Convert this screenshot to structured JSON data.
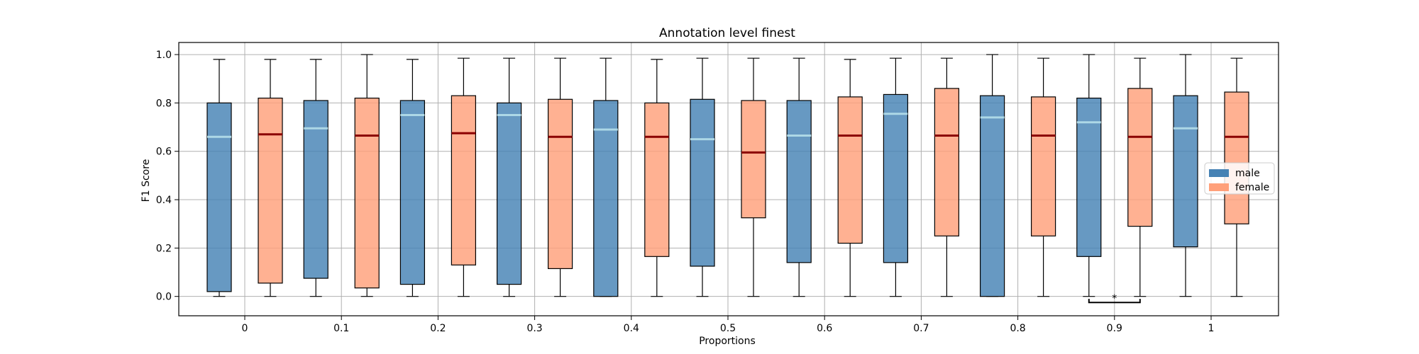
{
  "chart_data": {
    "type": "box",
    "title": "Annotation level finest",
    "xlabel": "Proportions",
    "ylabel": "F1 Score",
    "categories": [
      "0",
      "0.1",
      "0.2",
      "0.3",
      "0.4",
      "0.5",
      "0.6",
      "0.7",
      "0.8",
      "0.9",
      "1"
    ],
    "ylim": [
      -0.08,
      1.05
    ],
    "yticks": [
      "0.0",
      "0.2",
      "0.4",
      "0.6",
      "0.8",
      "1.0"
    ],
    "grid": true,
    "legend_position": "right",
    "series": [
      {
        "name": "male",
        "color": "#4682b4",
        "median_color": "#add8e6",
        "boxes": [
          {
            "whisker_low": 0.0,
            "q1": 0.02,
            "median": 0.66,
            "q3": 0.8,
            "whisker_high": 0.98
          },
          {
            "whisker_low": 0.0,
            "q1": 0.075,
            "median": 0.695,
            "q3": 0.81,
            "whisker_high": 0.98
          },
          {
            "whisker_low": 0.0,
            "q1": 0.05,
            "median": 0.75,
            "q3": 0.81,
            "whisker_high": 0.98
          },
          {
            "whisker_low": 0.0,
            "q1": 0.05,
            "median": 0.75,
            "q3": 0.8,
            "whisker_high": 0.985
          },
          {
            "whisker_low": 0.0,
            "q1": 0.0,
            "median": 0.69,
            "q3": 0.81,
            "whisker_high": 0.985
          },
          {
            "whisker_low": 0.0,
            "q1": 0.125,
            "median": 0.65,
            "q3": 0.815,
            "whisker_high": 0.985
          },
          {
            "whisker_low": 0.0,
            "q1": 0.14,
            "median": 0.665,
            "q3": 0.81,
            "whisker_high": 0.985
          },
          {
            "whisker_low": 0.0,
            "q1": 0.14,
            "median": 0.755,
            "q3": 0.835,
            "whisker_high": 0.985
          },
          {
            "whisker_low": 0.0,
            "q1": 0.0,
            "median": 0.74,
            "q3": 0.83,
            "whisker_high": 1.0
          },
          {
            "whisker_low": 0.0,
            "q1": 0.165,
            "median": 0.72,
            "q3": 0.82,
            "whisker_high": 1.0
          },
          {
            "whisker_low": 0.0,
            "q1": 0.205,
            "median": 0.695,
            "q3": 0.83,
            "whisker_high": 1.0
          }
        ]
      },
      {
        "name": "female",
        "color": "#ffa07a",
        "median_color": "#8b0000",
        "boxes": [
          {
            "whisker_low": 0.0,
            "q1": 0.055,
            "median": 0.67,
            "q3": 0.82,
            "whisker_high": 0.98
          },
          {
            "whisker_low": 0.0,
            "q1": 0.035,
            "median": 0.665,
            "q3": 0.82,
            "whisker_high": 1.0
          },
          {
            "whisker_low": 0.0,
            "q1": 0.13,
            "median": 0.675,
            "q3": 0.83,
            "whisker_high": 0.985
          },
          {
            "whisker_low": 0.0,
            "q1": 0.115,
            "median": 0.66,
            "q3": 0.815,
            "whisker_high": 0.985
          },
          {
            "whisker_low": 0.0,
            "q1": 0.165,
            "median": 0.66,
            "q3": 0.8,
            "whisker_high": 0.98
          },
          {
            "whisker_low": 0.0,
            "q1": 0.325,
            "median": 0.595,
            "q3": 0.81,
            "whisker_high": 0.985
          },
          {
            "whisker_low": 0.0,
            "q1": 0.22,
            "median": 0.665,
            "q3": 0.825,
            "whisker_high": 0.98
          },
          {
            "whisker_low": 0.0,
            "q1": 0.25,
            "median": 0.665,
            "q3": 0.86,
            "whisker_high": 0.985
          },
          {
            "whisker_low": 0.0,
            "q1": 0.25,
            "median": 0.665,
            "q3": 0.825,
            "whisker_high": 0.985
          },
          {
            "whisker_low": 0.0,
            "q1": 0.29,
            "median": 0.66,
            "q3": 0.86,
            "whisker_high": 0.985
          },
          {
            "whisker_low": 0.0,
            "q1": 0.3,
            "median": 0.66,
            "q3": 0.845,
            "whisker_high": 0.985
          }
        ]
      }
    ],
    "annotations": [
      {
        "category": "0.9",
        "text": "*"
      }
    ]
  }
}
